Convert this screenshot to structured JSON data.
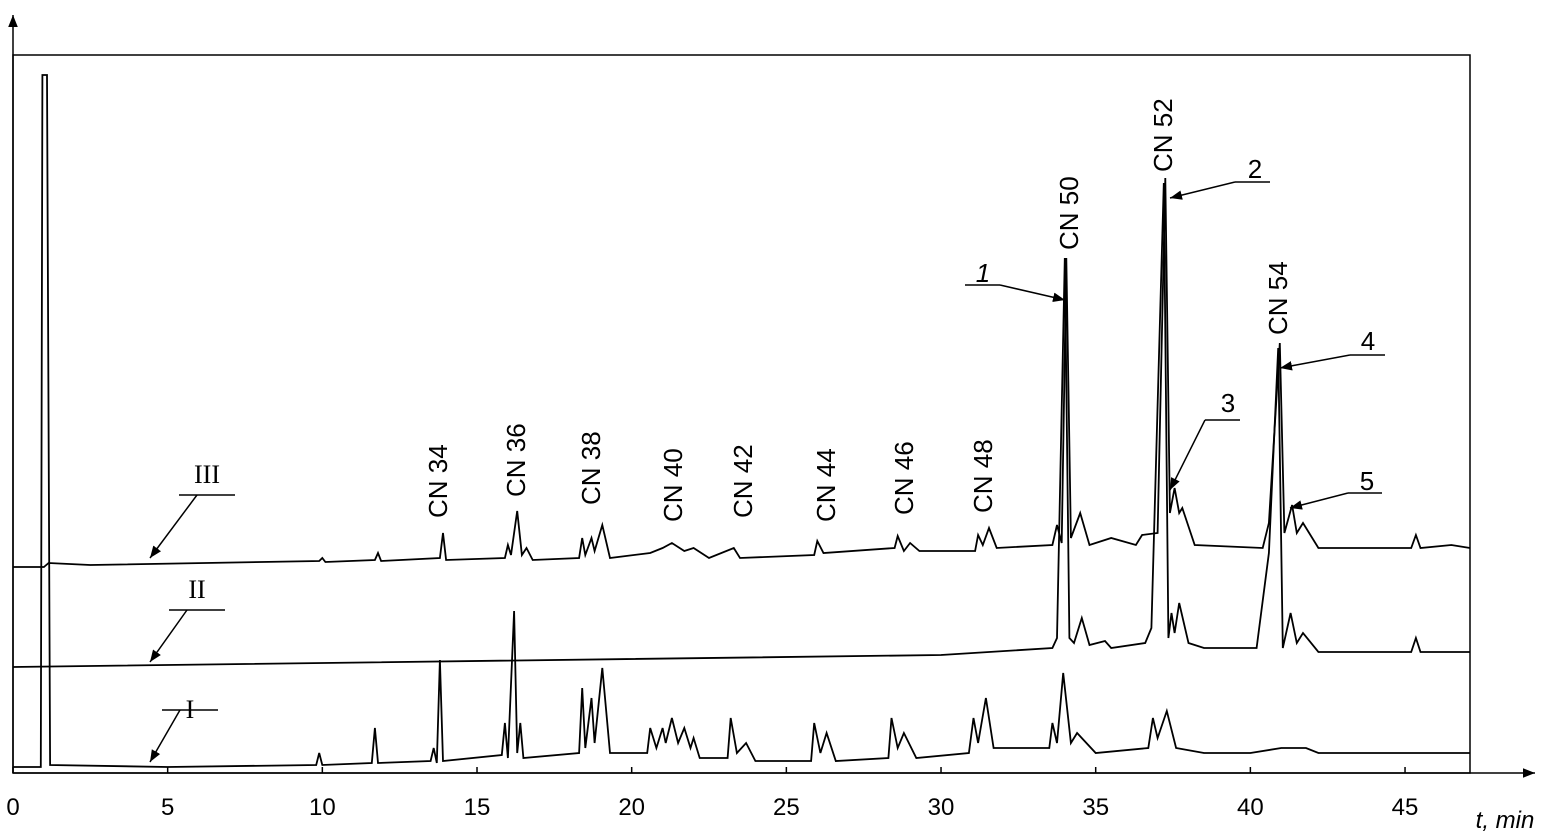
{
  "chart_data": {
    "type": "line",
    "x_label": "t, min",
    "xlim": [
      0,
      47.1
    ],
    "ylim": [
      0,
      718
    ],
    "xticks": [
      0,
      5,
      10,
      15,
      20,
      25,
      30,
      35,
      40,
      45
    ],
    "series": [
      {
        "name": "I",
        "color": "#000000",
        "x": [
          0,
          0.9,
          0.95,
          1.1,
          1.2,
          5,
          9.8,
          9.9,
          10,
          11.6,
          11.7,
          11.8,
          13.5,
          13.6,
          13.7,
          13.8,
          13.9,
          15.8,
          15.9,
          16,
          16.2,
          16.3,
          16.4,
          16.5,
          18.3,
          18.4,
          18.5,
          18.7,
          18.8,
          19.05,
          19.3,
          20.5,
          20.6,
          20.8,
          21.0,
          21.1,
          21.3,
          21.5,
          21.7,
          21.9,
          22.0,
          22.2,
          23.1,
          23.2,
          23.4,
          23.7,
          24,
          25.8,
          25.9,
          26.1,
          26.3,
          26.6,
          28.3,
          28.4,
          28.6,
          28.8,
          29.2,
          30.9,
          31.05,
          31.2,
          31.45,
          31.7,
          33.5,
          33.6,
          33.75,
          33.95,
          34.2,
          34.4,
          35,
          36.7,
          36.85,
          37,
          37.3,
          37.6,
          38.5,
          40,
          41,
          41.8,
          42.2,
          47.1
        ],
        "values": [
          6,
          6,
          698,
          698,
          8,
          6,
          8,
          20,
          8,
          10,
          45,
          10,
          12,
          25,
          10,
          113,
          12,
          18,
          50,
          15,
          162,
          20,
          50,
          15,
          20,
          85,
          25,
          75,
          30,
          105,
          20,
          20,
          45,
          25,
          45,
          30,
          55,
          30,
          45,
          25,
          35,
          15,
          15,
          55,
          20,
          30,
          12,
          12,
          50,
          20,
          40,
          12,
          15,
          55,
          25,
          40,
          15,
          20,
          55,
          30,
          75,
          25,
          25,
          50,
          30,
          100,
          30,
          40,
          20,
          25,
          55,
          35,
          62,
          25,
          20,
          20,
          25,
          25,
          20,
          20
        ]
      },
      {
        "name": "II",
        "color": "#000000",
        "x": [
          0,
          30,
          33.6,
          33.75,
          34.0,
          34.15,
          34.3,
          34.55,
          34.8,
          35.3,
          35.5,
          36.6,
          36.8,
          37.2,
          37.35,
          37.45,
          37.55,
          37.7,
          38,
          38.5,
          40.2,
          40.6,
          40.9,
          41.05,
          41.3,
          41.5,
          41.7,
          42.2,
          45.2,
          45.35,
          45.5,
          47.1
        ],
        "values": [
          106,
          118,
          125,
          135,
          515,
          135,
          130,
          155,
          128,
          132,
          125,
          130,
          145,
          590,
          135,
          160,
          140,
          170,
          130,
          125,
          125,
          220,
          425,
          125,
          160,
          130,
          140,
          121,
          121,
          135,
          121,
          121
        ]
      },
      {
        "name": "III",
        "color": "#000000",
        "x": [
          0,
          1.0,
          1.15,
          2.5,
          9.9,
          10,
          10.1,
          11.7,
          11.8,
          11.9,
          13.8,
          13.9,
          14,
          15.9,
          16,
          16.1,
          16.3,
          16.45,
          16.6,
          16.8,
          18.3,
          18.4,
          18.5,
          18.7,
          18.8,
          19.05,
          19.3,
          20.6,
          21,
          21.3,
          21.7,
          22,
          22.5,
          23.3,
          23.5,
          25.9,
          26,
          26.2,
          28.5,
          28.6,
          28.8,
          29,
          29.3,
          31.1,
          31.2,
          31.35,
          31.55,
          31.8,
          33.6,
          33.75,
          33.9,
          34.05,
          34.2,
          34.5,
          34.8,
          35.5,
          36.3,
          36.5,
          37.0,
          37.25,
          37.4,
          37.55,
          37.7,
          37.8,
          38.2,
          40.4,
          40.6,
          40.95,
          41.1,
          41.35,
          41.5,
          41.7,
          42.2,
          45.2,
          45.35,
          45.5,
          46.5,
          47.1
        ],
        "values": [
          206,
          206,
          210,
          208,
          212,
          215,
          211,
          213,
          220,
          212,
          215,
          240,
          213,
          215,
          228,
          218,
          262,
          218,
          225,
          213,
          215,
          235,
          218,
          235,
          222,
          248,
          215,
          220,
          225,
          230,
          222,
          225,
          215,
          225,
          215,
          218,
          232,
          220,
          225,
          237,
          222,
          230,
          222,
          222,
          238,
          228,
          245,
          225,
          228,
          248,
          230,
          515,
          235,
          260,
          228,
          235,
          228,
          238,
          240,
          595,
          260,
          285,
          260,
          265,
          228,
          225,
          250,
          430,
          240,
          268,
          240,
          250,
          225,
          225,
          238,
          225,
          228,
          225
        ]
      }
    ],
    "peak_labels": [
      "CN 34",
      "CN 36",
      "CN 38",
      "CN 40",
      "CN 42",
      "CN 44",
      "CN 46",
      "CN 48",
      "CN 50",
      "CN 52",
      "CN 54"
    ],
    "peak_numbers": [
      "1",
      "2",
      "3",
      "4",
      "5"
    ]
  }
}
